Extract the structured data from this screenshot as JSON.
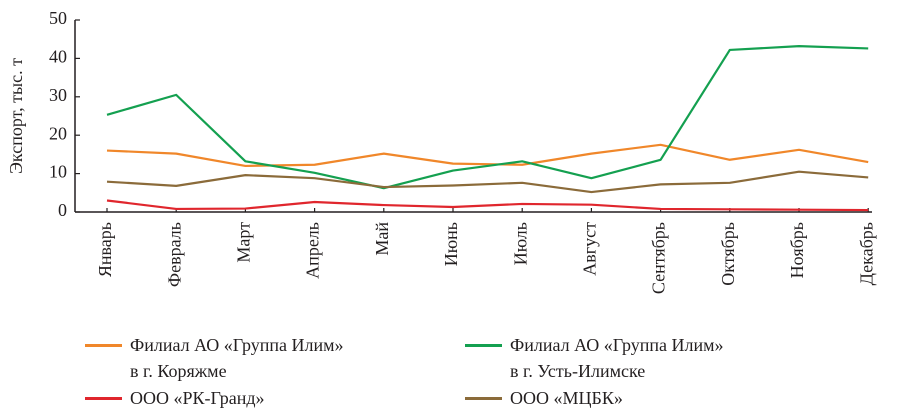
{
  "chart_data": {
    "type": "line",
    "y_label": "Экспорт, тыс. т",
    "categories": [
      "Январь",
      "Февраль",
      "Март",
      "Апрель",
      "Май",
      "Июнь",
      "Июль",
      "Август",
      "Сентябрь",
      "Октябрь",
      "Ноябрь",
      "Декабрь"
    ],
    "series": [
      {
        "name": "Филиал АО «Группа Илим»\nв г. Коряжме",
        "color": "#f0872a",
        "values": [
          16,
          15.2,
          12,
          12.3,
          15.2,
          12.6,
          12.3,
          15.2,
          17.5,
          13.6,
          16.2,
          13
        ]
      },
      {
        "name": "Филиал АО «Группа Илим»\nв г. Усть-Илимске",
        "color": "#14a050",
        "values": [
          25.3,
          30.5,
          13.2,
          10.2,
          6.2,
          10.8,
          13.2,
          8.8,
          13.6,
          42.2,
          43.2,
          42.6
        ]
      },
      {
        "name": "ООО «РК-Гранд»",
        "color": "#e0262d",
        "values": [
          3,
          0.8,
          0.9,
          2.6,
          1.8,
          1.3,
          2.1,
          1.9,
          0.8,
          0.7,
          0.6,
          0.5
        ]
      },
      {
        "name": "ООО «МЦБК»",
        "color": "#8b6b3a",
        "values": [
          7.9,
          6.8,
          9.6,
          8.8,
          6.5,
          6.9,
          7.6,
          5.2,
          7.2,
          7.6,
          10.5,
          9
        ]
      }
    ],
    "ylim": [
      0,
      50
    ],
    "yticks": [
      0,
      10,
      20,
      30,
      40,
      50
    ]
  }
}
